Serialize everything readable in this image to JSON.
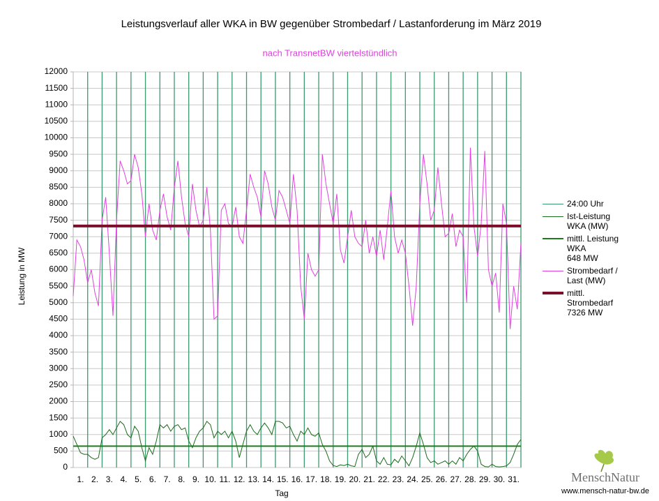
{
  "chart_data": {
    "type": "line",
    "title": "Leistungsverlauf aller WKA in BW gegenüber  Strombedarf / Lastanforderung im März 2019",
    "subtitle": "nach TransnetBW viertelstündlich",
    "subtitle_color": "#e040e0",
    "xlabel": "Tag",
    "ylabel": "Leistung in MW",
    "xlim": [
      0,
      31
    ],
    "ylim": [
      0,
      12000
    ],
    "yticks": [
      0,
      500,
      1000,
      1500,
      2000,
      2500,
      3000,
      3500,
      4000,
      4500,
      5000,
      5500,
      6000,
      6500,
      7000,
      7500,
      8000,
      8500,
      9000,
      9500,
      10000,
      10500,
      11000,
      11500,
      12000
    ],
    "xticks": [
      {
        "value": 0.5,
        "label": "1."
      },
      {
        "value": 1.5,
        "label": "2."
      },
      {
        "value": 2.5,
        "label": "3."
      },
      {
        "value": 3.5,
        "label": "4."
      },
      {
        "value": 4.5,
        "label": "5."
      },
      {
        "value": 5.5,
        "label": "6."
      },
      {
        "value": 6.5,
        "label": "7."
      },
      {
        "value": 7.5,
        "label": "8."
      },
      {
        "value": 8.5,
        "label": "9."
      },
      {
        "value": 9.5,
        "label": "10."
      },
      {
        "value": 10.5,
        "label": "11."
      },
      {
        "value": 11.5,
        "label": "12."
      },
      {
        "value": 12.5,
        "label": "13."
      },
      {
        "value": 13.5,
        "label": "14."
      },
      {
        "value": 14.5,
        "label": "15."
      },
      {
        "value": 15.5,
        "label": "16."
      },
      {
        "value": 16.5,
        "label": "17."
      },
      {
        "value": 17.5,
        "label": "18."
      },
      {
        "value": 18.5,
        "label": "19."
      },
      {
        "value": 19.5,
        "label": "20."
      },
      {
        "value": 20.5,
        "label": "21."
      },
      {
        "value": 21.5,
        "label": "22."
      },
      {
        "value": 22.5,
        "label": "23."
      },
      {
        "value": 23.5,
        "label": "24."
      },
      {
        "value": 24.5,
        "label": "25."
      },
      {
        "value": 25.5,
        "label": "26."
      },
      {
        "value": 26.5,
        "label": "27."
      },
      {
        "value": 27.5,
        "label": "28."
      },
      {
        "value": 28.5,
        "label": "29."
      },
      {
        "value": 29.5,
        "label": "30."
      },
      {
        "value": 30.5,
        "label": "31."
      }
    ],
    "grid": true,
    "day_lines": {
      "name": "24:00 Uhr",
      "color": "#3a9a6e",
      "x": [
        1,
        2,
        3,
        4,
        5,
        6,
        7,
        8,
        9,
        10,
        11,
        12,
        13,
        14,
        15,
        16,
        17,
        18,
        19,
        20,
        21,
        22,
        23,
        24,
        25,
        26,
        27,
        28,
        29,
        30,
        31
      ]
    },
    "x": [
      0,
      0.25,
      0.5,
      0.75,
      1,
      1.25,
      1.5,
      1.75,
      2,
      2.25,
      2.5,
      2.75,
      3,
      3.25,
      3.5,
      3.75,
      4,
      4.25,
      4.5,
      4.75,
      5,
      5.25,
      5.5,
      5.75,
      6,
      6.25,
      6.5,
      6.75,
      7,
      7.25,
      7.5,
      7.75,
      8,
      8.25,
      8.5,
      8.75,
      9,
      9.25,
      9.5,
      9.75,
      10,
      10.25,
      10.5,
      10.75,
      11,
      11.25,
      11.5,
      11.75,
      12,
      12.25,
      12.5,
      12.75,
      13,
      13.25,
      13.5,
      13.75,
      14,
      14.25,
      14.5,
      14.75,
      15,
      15.25,
      15.5,
      15.75,
      16,
      16.25,
      16.5,
      16.75,
      17,
      17.25,
      17.5,
      17.75,
      18,
      18.25,
      18.5,
      18.75,
      19,
      19.25,
      19.5,
      19.75,
      20,
      20.25,
      20.5,
      20.75,
      21,
      21.25,
      21.5,
      21.75,
      22,
      22.25,
      22.5,
      22.75,
      23,
      23.25,
      23.5,
      23.75,
      24,
      24.25,
      24.5,
      24.75,
      25,
      25.25,
      25.5,
      25.75,
      26,
      26.25,
      26.5,
      26.75,
      27,
      27.25,
      27.5,
      27.75,
      28,
      28.25,
      28.5,
      28.75,
      29,
      29.25,
      29.5,
      29.75,
      30,
      30.25,
      30.5,
      30.75,
      31
    ],
    "series": [
      {
        "name": "Ist-Leistung WKA (MW)",
        "color": "#1a6b1a",
        "width": 1,
        "values": [
          950,
          700,
          450,
          400,
          400,
          300,
          250,
          300,
          900,
          1000,
          1150,
          1000,
          1200,
          1400,
          1300,
          1000,
          900,
          1250,
          1100,
          600,
          200,
          600,
          400,
          800,
          1300,
          1200,
          1300,
          1100,
          1250,
          1300,
          1150,
          1200,
          800,
          600,
          900,
          1100,
          1200,
          1400,
          1300,
          900,
          1100,
          1000,
          1100,
          900,
          1100,
          800,
          300,
          700,
          1100,
          1300,
          1100,
          1000,
          1200,
          1350,
          1200,
          1000,
          1400,
          1400,
          1350,
          1200,
          1250,
          1000,
          800,
          1100,
          1000,
          1200,
          1000,
          950,
          1050,
          700,
          500,
          200,
          60,
          30,
          80,
          60,
          100,
          50,
          30,
          400,
          550,
          300,
          400,
          650,
          200,
          100,
          300,
          100,
          80,
          250,
          150,
          350,
          200,
          50,
          300,
          650,
          1050,
          700,
          300,
          150,
          200,
          100,
          150,
          200,
          100,
          200,
          100,
          300,
          200,
          400,
          550,
          650,
          500,
          100,
          30,
          20,
          100,
          30,
          20,
          30,
          50,
          150,
          400,
          700,
          850
        ]
      },
      {
        "name": "Strombedarf / Last (MW)",
        "color": "#e040e0",
        "width": 1,
        "values": [
          5200,
          6900,
          6700,
          6300,
          5600,
          6000,
          5300,
          4900,
          7500,
          8200,
          6500,
          4600,
          7500,
          9300,
          9000,
          8600,
          8700,
          9500,
          9100,
          8300,
          7000,
          8000,
          7200,
          6900,
          7800,
          8300,
          7600,
          7200,
          8500,
          9300,
          8200,
          7400,
          7000,
          8600,
          7800,
          7300,
          7500,
          8500,
          7200,
          4500,
          4600,
          7800,
          8000,
          7400,
          7300,
          7900,
          7000,
          6800,
          7800,
          8900,
          8500,
          8200,
          7600,
          9000,
          8600,
          7900,
          7500,
          8400,
          8200,
          7800,
          7400,
          8900,
          7800,
          5500,
          4500,
          6500,
          6000,
          5800,
          6000,
          9500,
          8600,
          8000,
          7400,
          8300,
          6600,
          6200,
          7000,
          7800,
          7000,
          6800,
          6700,
          7500,
          6500,
          7000,
          6400,
          7200,
          6300,
          7300,
          8400,
          7000,
          6500,
          6900,
          6500,
          5500,
          4300,
          5500,
          8000,
          9500,
          8600,
          7500,
          7800,
          9100,
          8000,
          7000,
          7100,
          7700,
          6700,
          7200,
          7000,
          5000,
          9700,
          7300,
          6400,
          7400,
          9600,
          6000,
          5500,
          5900,
          4700,
          8000,
          7400,
          4200,
          5500,
          4800,
          6800
        ]
      }
    ],
    "mean_lines": [
      {
        "name": "mittl. Leistung WKA",
        "label": "648 MW",
        "value": 648,
        "color": "#1e7b1e",
        "width": 2
      },
      {
        "name": "mittl. Strombedarf",
        "label": "7326 MW",
        "value": 7326,
        "color": "#7b0f2a",
        "width": 4
      }
    ],
    "footer": {
      "brand": "MenschNatur",
      "url": "www.mensch-natur-bw.de"
    }
  }
}
